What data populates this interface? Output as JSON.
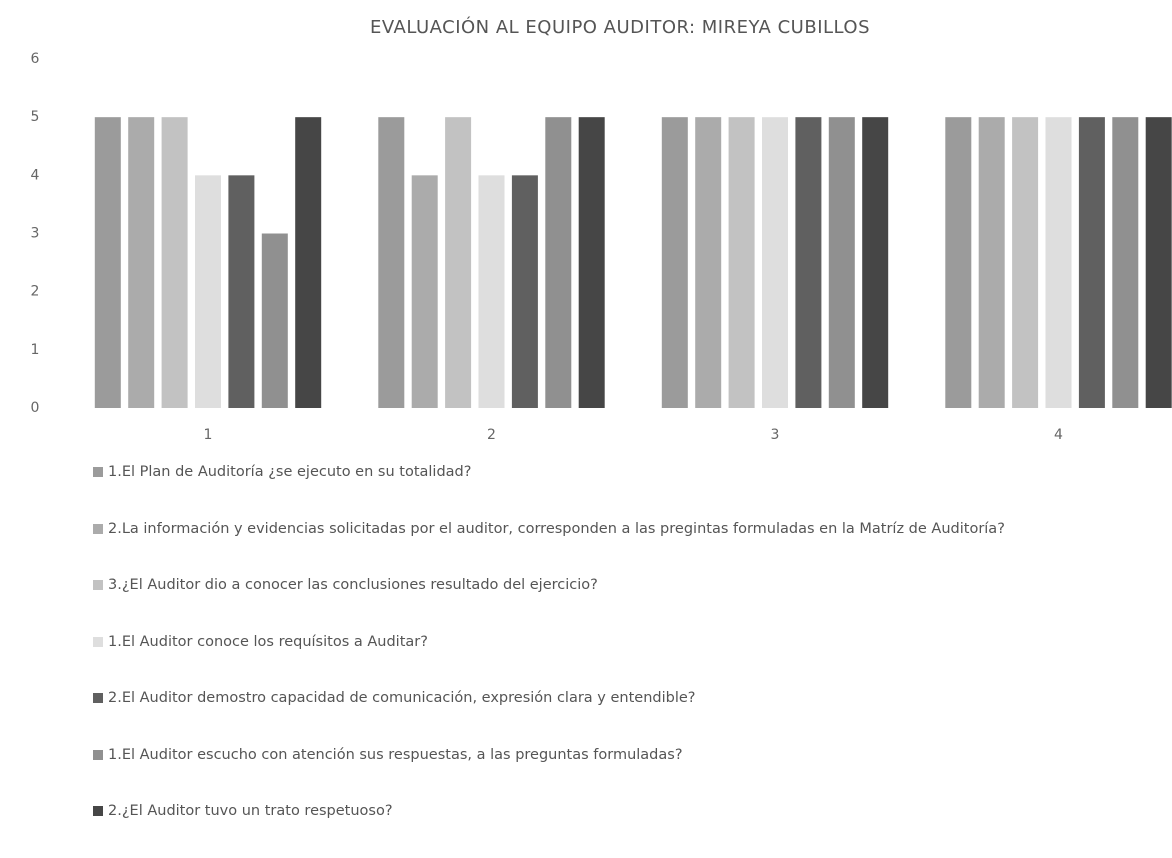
{
  "chart_data": {
    "type": "bar",
    "title": "EVALUACIÓN AL EQUIPO AUDITOR:  MIREYA CUBILLOS",
    "categories": [
      "1",
      "2",
      "3",
      "4"
    ],
    "series": [
      {
        "name": "1.El Plan de Auditoría ¿se ejecuto en su totalidad?",
        "color": "#9b9b9b",
        "values": [
          5,
          5,
          5,
          5
        ]
      },
      {
        "name": "2.La información y evidencias solicitadas por el auditor, corresponden a las pregintas formuladas en la Matríz de Auditoría?",
        "color": "#ababab",
        "values": [
          5,
          4,
          5,
          5
        ]
      },
      {
        "name": "3.¿El Auditor dio a conocer las conclusiones resultado del ejercicio?",
        "color": "#c2c2c2",
        "values": [
          5,
          5,
          5,
          5
        ]
      },
      {
        "name": "1.El Auditor conoce los requísitos a Auditar?",
        "color": "#dedede",
        "values": [
          4,
          4,
          5,
          5
        ]
      },
      {
        "name": "2.El Auditor demostro capacidad de comunicación, expresión clara y entendible?",
        "color": "#606060",
        "values": [
          4,
          4,
          5,
          5
        ]
      },
      {
        "name": "1.El Auditor escucho con atención sus respuestas, a las preguntas formuladas?",
        "color": "#909090",
        "values": [
          3,
          5,
          5,
          5
        ]
      },
      {
        "name": "2.¿El Auditor tuvo un trato respetuoso?",
        "color": "#464646",
        "values": [
          5,
          5,
          5,
          5
        ]
      }
    ],
    "ylim": [
      0,
      6
    ],
    "yticks": [
      0,
      1,
      2,
      3,
      4,
      5,
      6
    ],
    "grid": false,
    "legend": "bottom"
  }
}
